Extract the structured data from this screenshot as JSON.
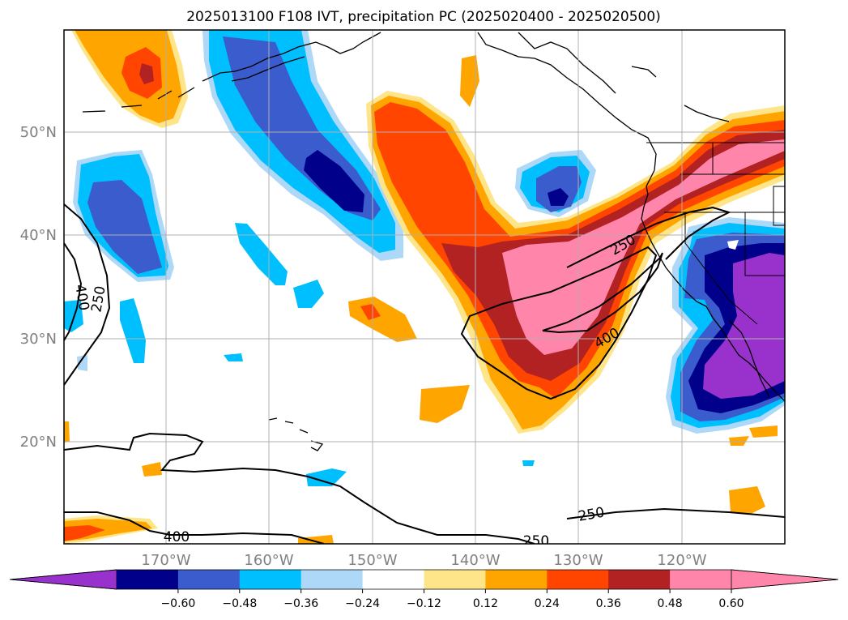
{
  "title": "2025013100 F108 IVT, precipitation PC (2025020400 - 2025020500)",
  "lat_labels": [
    "50°N",
    "40°N",
    "30°N",
    "20°N"
  ],
  "lon_labels": [
    "170°W",
    "160°W",
    "150°W",
    "140°W",
    "130°W",
    "120°W"
  ],
  "contour_labels": [
    "250",
    "400",
    "250",
    "400",
    "250",
    "400",
    "250"
  ],
  "colorbar": {
    "ticks": [
      "−0.60",
      "−0.48",
      "−0.36",
      "−0.24",
      "−0.12",
      "0.12",
      "0.24",
      "0.36",
      "0.48",
      "0.60"
    ],
    "colors": [
      "#9932cc",
      "#00008b",
      "#3a5ccc",
      "#00bfff",
      "#add8f7",
      "#ffffff",
      "#ffe58a",
      "#ffa500",
      "#ff4500",
      "#b22222",
      "#ff85ab",
      "#ff85ab"
    ]
  },
  "colors": {
    "neg_60": "#9932cc",
    "neg_48": "#00008b",
    "neg_36": "#3a5ccc",
    "neg_24": "#00bfff",
    "neg_12": "#add8f7",
    "pos_12": "#ffe58a",
    "pos_24": "#ffa500",
    "pos_36": "#ff4500",
    "pos_48": "#b22222",
    "pos_60": "#ff85ab"
  }
}
